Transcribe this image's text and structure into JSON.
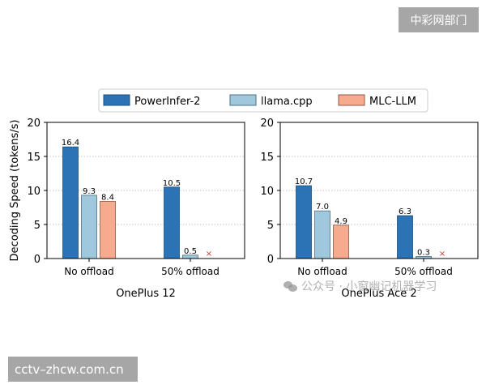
{
  "chart_data": [
    {
      "type": "bar",
      "xlabel": "OnePlus 12",
      "ylabel": "Decoding Speed (tokens/s)",
      "ylim": [
        0,
        20
      ],
      "yticks": [
        0,
        5,
        10,
        15,
        20
      ],
      "grid": "horizontal-dotted",
      "categories": [
        "No offload",
        "50% offload"
      ],
      "series": [
        {
          "name": "PowerInfer-2",
          "values": [
            16.4,
            10.5
          ],
          "labels": [
            "16.4",
            "10.5"
          ]
        },
        {
          "name": "llama.cpp",
          "values": [
            9.3,
            0.5
          ],
          "labels": [
            "9.3",
            "0.5"
          ]
        },
        {
          "name": "MLC-LLM",
          "values": [
            8.4,
            null
          ],
          "labels": [
            "8.4",
            "×"
          ]
        }
      ]
    },
    {
      "type": "bar",
      "xlabel": "OnePlus Ace 2",
      "ylabel": "",
      "ylim": [
        0,
        20
      ],
      "yticks": [
        0,
        5,
        10,
        15,
        20
      ],
      "grid": "horizontal-dotted",
      "categories": [
        "No offload",
        "50% offload"
      ],
      "series": [
        {
          "name": "PowerInfer-2",
          "values": [
            10.7,
            6.3
          ],
          "labels": [
            "10.7",
            "6.3"
          ]
        },
        {
          "name": "llama.cpp",
          "values": [
            7.0,
            0.3
          ],
          "labels": [
            "7.0",
            "0.3"
          ]
        },
        {
          "name": "MLC-LLM",
          "values": [
            4.9,
            null
          ],
          "labels": [
            "4.9",
            "×"
          ]
        }
      ]
    }
  ],
  "legend": {
    "placement": "top-center",
    "entries": [
      {
        "label": "PowerInfer-2",
        "color": "#2b73b4",
        "edge": "#1f4f7a"
      },
      {
        "label": "llama.cpp",
        "color": "#9fc8dd",
        "edge": "#4f6f80"
      },
      {
        "label": "MLC-LLM",
        "color": "#f6ab8f",
        "edge": "#8a5a48"
      }
    ]
  },
  "missing_marker": {
    "symbol": "×",
    "color": "#c0392b"
  },
  "watermarks": {
    "top_right": "中彩网部门",
    "bottom_left": "cctv–zhcw.com.cn",
    "wechat": "公众号 · 小窗幽记机器学习"
  }
}
